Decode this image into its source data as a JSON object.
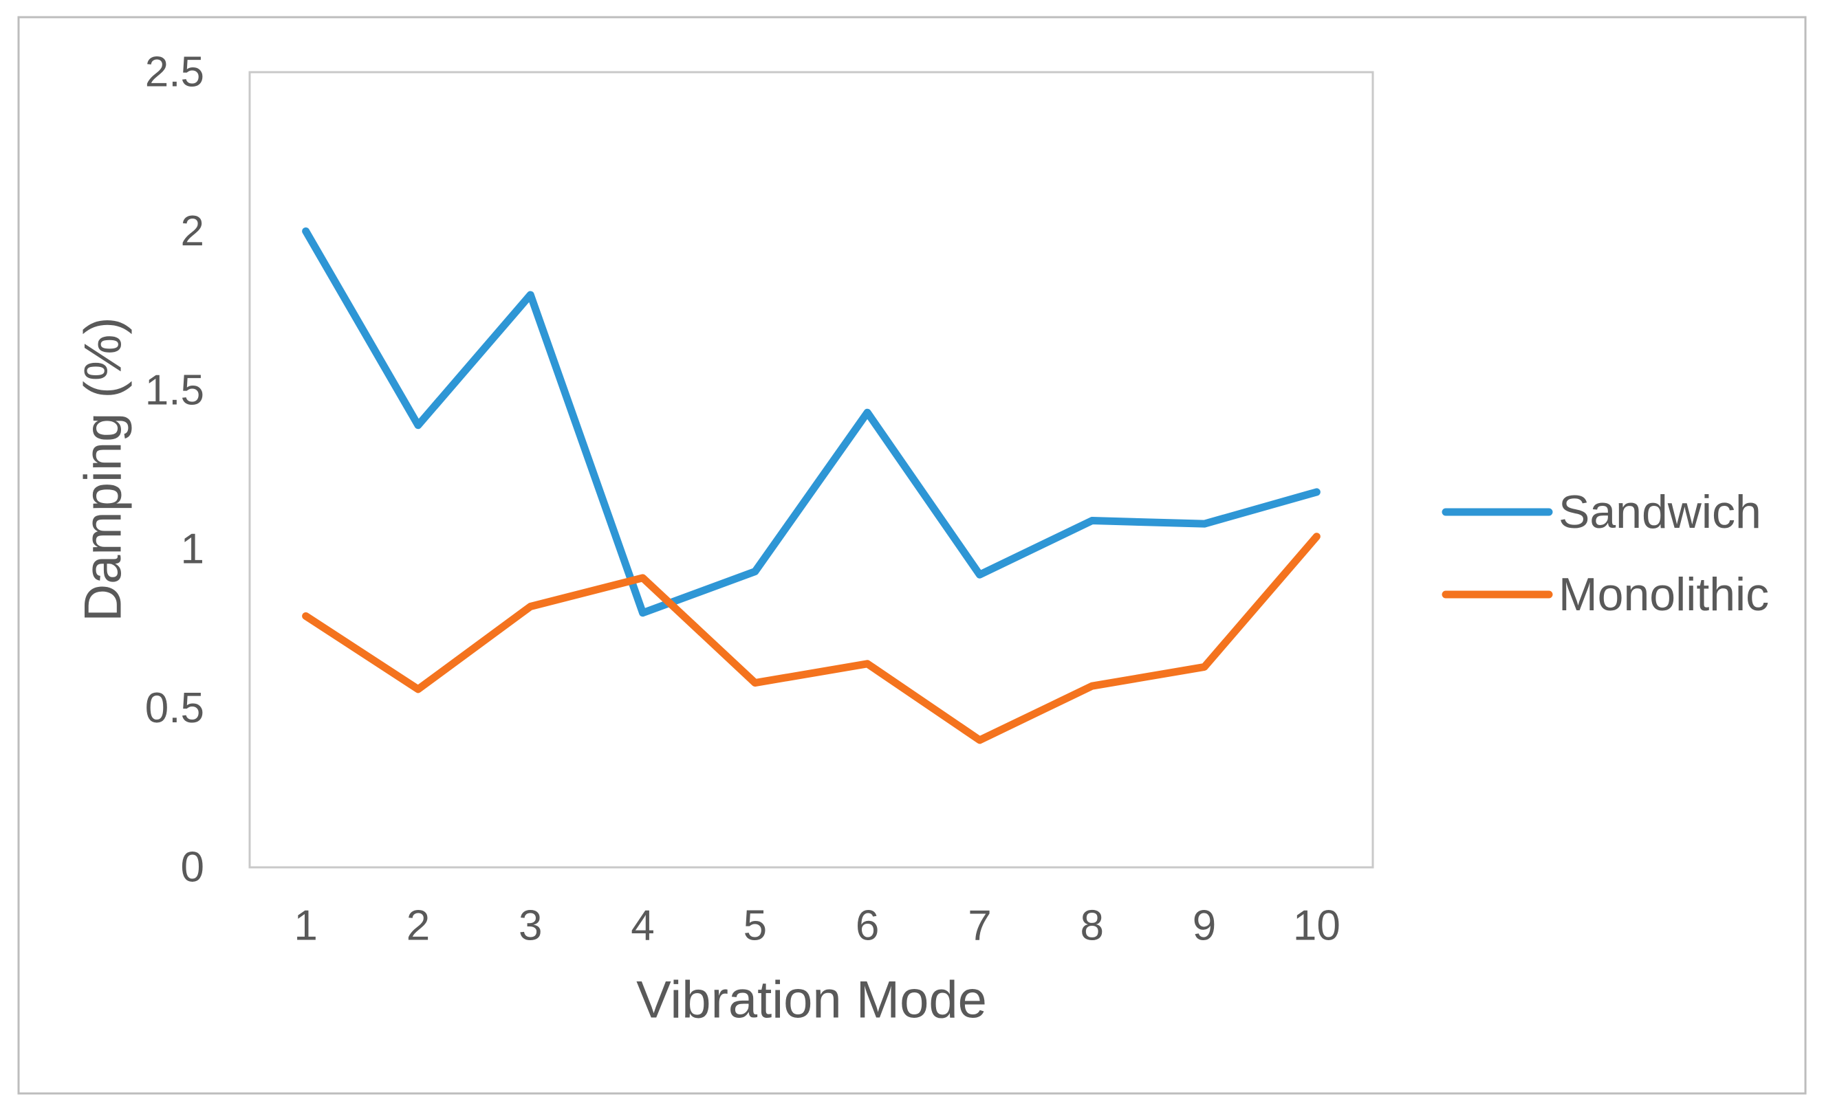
{
  "chart_data": {
    "type": "line",
    "categories": [
      "1",
      "2",
      "3",
      "4",
      "5",
      "6",
      "7",
      "8",
      "9",
      "10"
    ],
    "series": [
      {
        "name": "Sandwich",
        "color": "#2e96d5",
        "values": [
          2.0,
          1.39,
          1.8,
          0.8,
          0.93,
          1.43,
          0.92,
          1.09,
          1.08,
          1.18
        ]
      },
      {
        "name": "Monolithic",
        "color": "#f4731e",
        "values": [
          0.79,
          0.56,
          0.82,
          0.91,
          0.58,
          0.64,
          0.4,
          0.57,
          0.63,
          1.04
        ]
      }
    ],
    "title": "",
    "xlabel": "Vibration Mode",
    "ylabel": "Damping (%)",
    "ylim": [
      0,
      2.5
    ],
    "y_ticks": [
      0,
      0.5,
      1,
      1.5,
      2,
      2.5
    ],
    "y_tick_labels": [
      "0",
      "0.5",
      "1",
      "1.5",
      "2",
      "2.5"
    ],
    "grid": false,
    "legend_position": "right",
    "colors": {
      "tick_text": "#595959",
      "axis_title_text": "#595959",
      "plot_border": "#c9c9c9",
      "figure_border": "#bdbdbd",
      "background": "#ffffff"
    }
  }
}
